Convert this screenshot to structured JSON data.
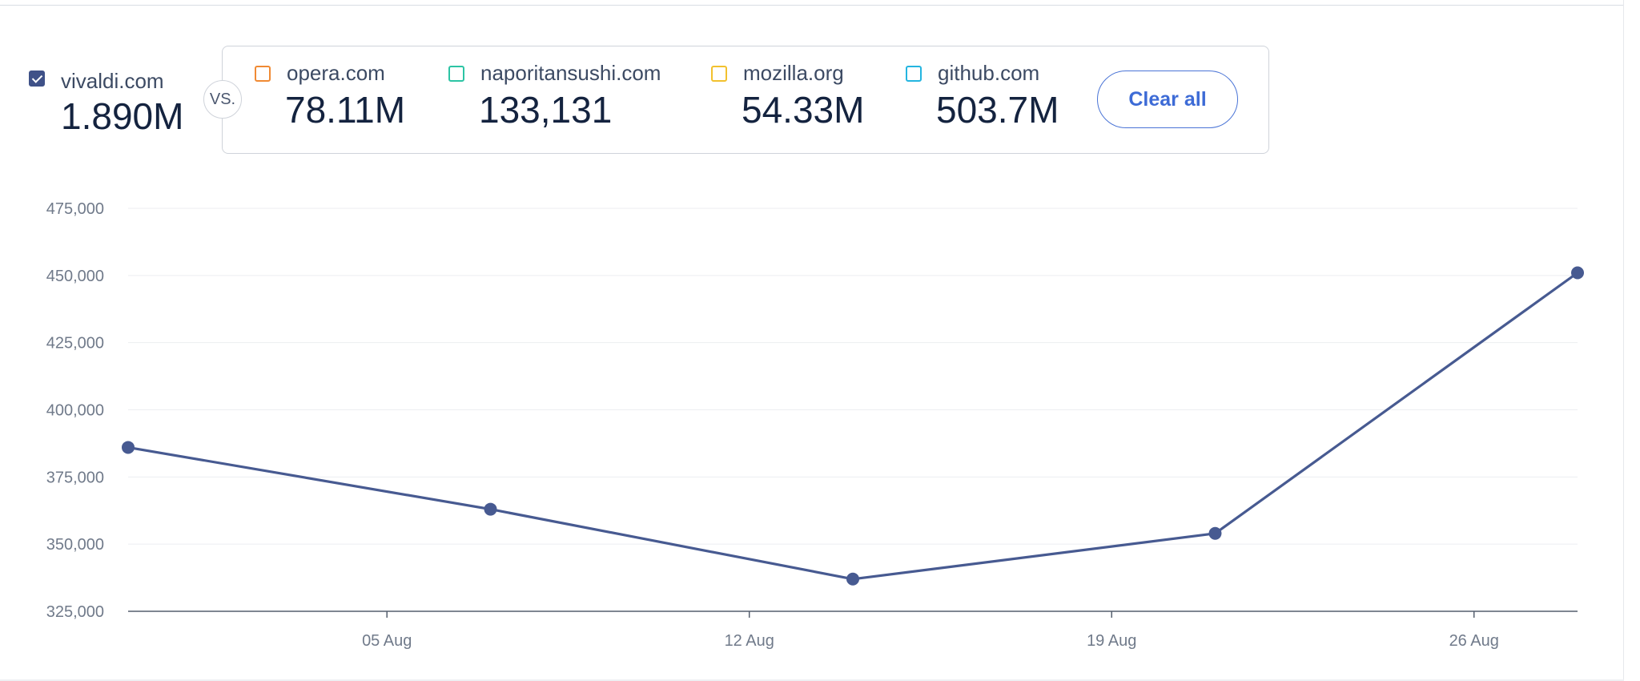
{
  "legend": {
    "primary": {
      "name": "vivaldi.com",
      "value": "1.890M",
      "color": "#3f5188",
      "checked": true
    },
    "vs_label": "VS.",
    "competitors": [
      {
        "name": "opera.com",
        "value": "78.11M",
        "color": "#f08a34"
      },
      {
        "name": "naporitansushi.com",
        "value": "133,131",
        "color": "#2cc4a4"
      },
      {
        "name": "mozilla.org",
        "value": "54.33M",
        "color": "#f2c12e"
      },
      {
        "name": "github.com",
        "value": "503.7M",
        "color": "#24b5e0"
      }
    ],
    "clear_label": "Clear all"
  },
  "chart_data": {
    "type": "line",
    "title": "",
    "xlabel": "",
    "ylabel": "",
    "x_ticks": [
      "05 Aug",
      "12 Aug",
      "19 Aug",
      "26 Aug"
    ],
    "y_ticks": [
      "475,000",
      "450,000",
      "425,000",
      "400,000",
      "375,000",
      "350,000",
      "325,000"
    ],
    "ylim": [
      325000,
      475000
    ],
    "grid": true,
    "series": [
      {
        "color": "#475a91",
        "points": [
          {
            "x": "2024-07-31",
            "y": 386000
          },
          {
            "x": "2024-08-07",
            "y": 363000
          },
          {
            "x": "2024-08-14",
            "y": 337000
          },
          {
            "x": "2024-08-21",
            "y": 354000
          },
          {
            "x": "2024-08-28",
            "y": 451000
          }
        ]
      }
    ]
  }
}
